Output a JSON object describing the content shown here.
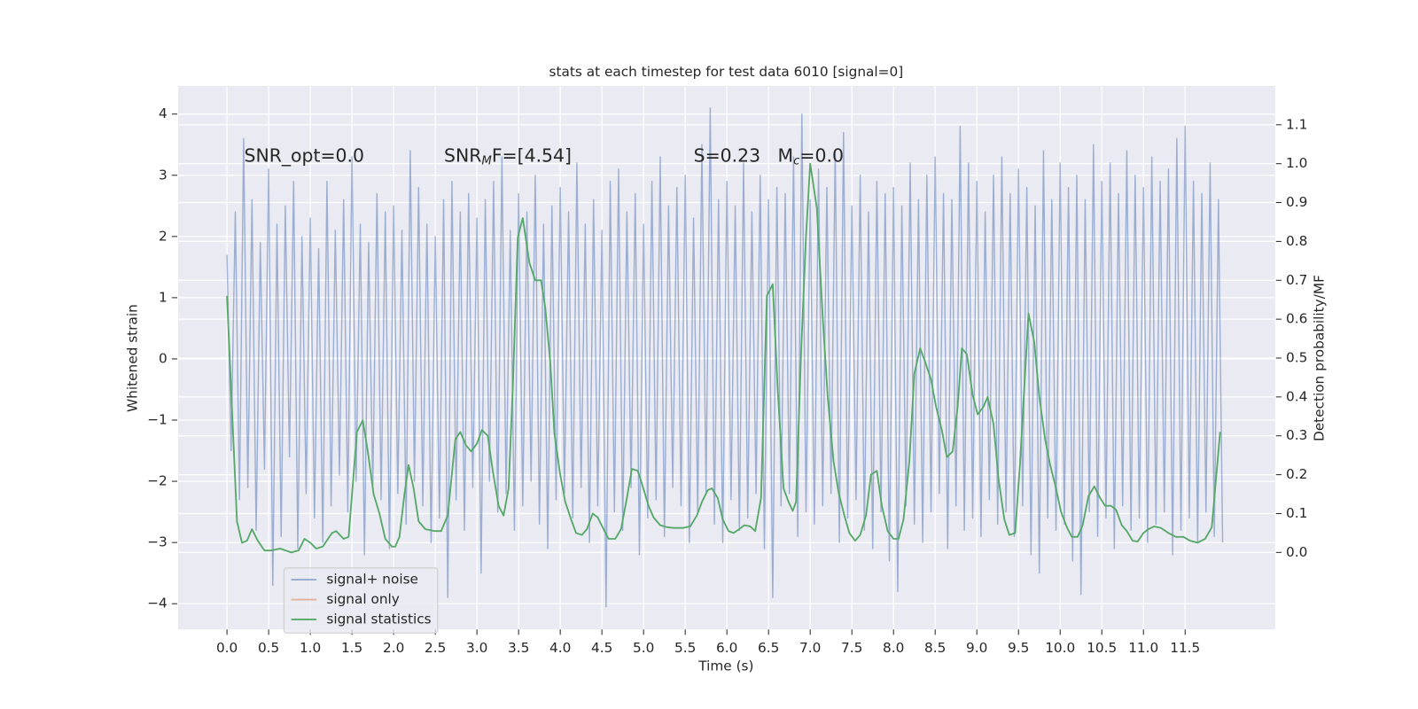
{
  "chart_data": {
    "type": "line",
    "title": "stats at each timestep for test data 6010 [signal=0]",
    "x_label": "Time (s)",
    "y_label": "Whitened strain",
    "y2_label": "Detection probability/MF",
    "annotations": [
      "SNR_opt=0.0",
      "SNR_MF=[4.54]",
      "S=0.23   M_c=0.0"
    ],
    "xlim": [
      -0.586,
      12.58
    ],
    "ylim": [
      -4.42,
      4.46
    ],
    "y2lim": [
      -0.198,
      1.2
    ],
    "xticks": [
      {
        "value": 0,
        "label": "0.0"
      },
      0.5,
      {
        "value": 1,
        "label": "1.0"
      },
      1.5,
      {
        "value": 2,
        "label": "2.0"
      },
      2.5,
      {
        "value": 3,
        "label": "3.0"
      },
      3.5,
      {
        "value": 4,
        "label": "4.0"
      },
      4.5,
      {
        "value": 5,
        "label": "5.0"
      },
      5.5,
      {
        "value": 6,
        "label": "6.0"
      },
      6.5,
      {
        "value": 7,
        "label": "7.0"
      },
      7.5,
      {
        "value": 8,
        "label": "8.0"
      },
      8.5,
      {
        "value": 9,
        "label": "9.0"
      },
      9.5,
      {
        "value": 10,
        "label": "10.0"
      },
      10.5,
      {
        "value": 11,
        "label": "11.0"
      },
      11.5
    ],
    "yticks": [
      {
        "value": -4,
        "label": "−4"
      },
      {
        "value": -3,
        "label": "−3"
      },
      {
        "value": -2,
        "label": "−2"
      },
      {
        "value": -1,
        "label": "−1"
      },
      0,
      1,
      2,
      3,
      4
    ],
    "y2ticks": [
      {
        "value": 0,
        "label": "0.0"
      },
      0.1,
      0.2,
      0.3,
      0.4,
      0.5,
      0.6,
      0.7,
      0.8,
      0.9,
      {
        "value": 1,
        "label": "1.0"
      },
      1.1
    ],
    "grid": true,
    "legend": "lower left",
    "series": [
      {
        "name": "signal+ noise",
        "color": "#4c72b0",
        "x": [
          0,
          0.05,
          0.1,
          0.15,
          0.2,
          0.25,
          0.3,
          0.35,
          0.4,
          0.45,
          0.5,
          0.55,
          0.6,
          0.65,
          0.7,
          0.75,
          0.8,
          0.85,
          0.9,
          0.95,
          1,
          1.05,
          1.1,
          1.15,
          1.2,
          1.25,
          1.3,
          1.35,
          1.4,
          1.45,
          1.5,
          1.55,
          1.6,
          1.65,
          1.7,
          1.75,
          1.8,
          1.85,
          1.9,
          1.95,
          2,
          2.05,
          2.1,
          2.15,
          2.2,
          2.25,
          2.3,
          2.35,
          2.4,
          2.45,
          2.5,
          2.55,
          2.6,
          2.65,
          2.7,
          2.75,
          2.8,
          2.85,
          2.9,
          2.95,
          3,
          3.05,
          3.1,
          3.15,
          3.2,
          3.25,
          3.3,
          3.35,
          3.4,
          3.45,
          3.5,
          3.55,
          3.6,
          3.65,
          3.7,
          3.75,
          3.8,
          3.85,
          3.9,
          3.95,
          4,
          4.05,
          4.1,
          4.15,
          4.2,
          4.25,
          4.3,
          4.35,
          4.4,
          4.45,
          4.5,
          4.55,
          4.6,
          4.65,
          4.7,
          4.75,
          4.8,
          4.85,
          4.9,
          4.95,
          5,
          5.05,
          5.1,
          5.15,
          5.2,
          5.25,
          5.3,
          5.35,
          5.4,
          5.45,
          5.5,
          5.55,
          5.6,
          5.65,
          5.7,
          5.75,
          5.8,
          5.85,
          5.9,
          5.95,
          6,
          6.05,
          6.1,
          6.15,
          6.2,
          6.25,
          6.3,
          6.35,
          6.4,
          6.45,
          6.5,
          6.55,
          6.6,
          6.65,
          6.7,
          6.75,
          6.8,
          6.85,
          6.9,
          6.95,
          7,
          7.05,
          7.1,
          7.15,
          7.2,
          7.25,
          7.3,
          7.35,
          7.4,
          7.45,
          7.5,
          7.55,
          7.6,
          7.65,
          7.7,
          7.75,
          7.8,
          7.85,
          7.9,
          7.95,
          8,
          8.05,
          8.1,
          8.15,
          8.2,
          8.25,
          8.3,
          8.35,
          8.4,
          8.45,
          8.5,
          8.55,
          8.6,
          8.65,
          8.7,
          8.75,
          8.8,
          8.85,
          8.9,
          8.95,
          9,
          9.05,
          9.1,
          9.15,
          9.2,
          9.25,
          9.3,
          9.35,
          9.4,
          9.45,
          9.5,
          9.55,
          9.6,
          9.65,
          9.7,
          9.75,
          9.8,
          9.85,
          9.9,
          9.95,
          10,
          10.05,
          10.1,
          10.15,
          10.2,
          10.25,
          10.3,
          10.35,
          10.4,
          10.45,
          10.5,
          10.55,
          10.6,
          10.65,
          10.7,
          10.75,
          10.8,
          10.85,
          10.9,
          10.95,
          11,
          11.05,
          11.1,
          11.15,
          11.2,
          11.25,
          11.3,
          11.35,
          11.4,
          11.45,
          11.5,
          11.55,
          11.6,
          11.65,
          11.7,
          11.75,
          11.8,
          11.85,
          11.9,
          11.95
        ],
        "values": [
          1.7,
          -1.5,
          2.4,
          -2.3,
          3.6,
          -2.1,
          2.6,
          -2.8,
          1.9,
          -1.8,
          3.1,
          -3.7,
          2.2,
          -2.9,
          2.5,
          -1.6,
          2.9,
          -3.1,
          2.0,
          -2.2,
          2.3,
          -2.6,
          1.8,
          -3.0,
          2.9,
          -2.4,
          2.1,
          -1.9,
          2.6,
          -2.5,
          3.3,
          -2.0,
          2.2,
          -3.2,
          1.9,
          -2.1,
          2.7,
          -2.3,
          2.4,
          -3.1,
          2.5,
          -2.2,
          2.1,
          -2.7,
          3.4,
          -2.0,
          2.8,
          -2.4,
          2.2,
          -3.0,
          2.0,
          -2.6,
          2.6,
          -3.9,
          2.9,
          -2.3,
          2.4,
          -2.8,
          2.7,
          -2.1,
          2.3,
          -3.5,
          2.6,
          -2.0,
          2.9,
          -2.5,
          3.3,
          -2.2,
          2.1,
          -2.8,
          2.7,
          -2.4,
          2.4,
          -2.0,
          3.0,
          -2.7,
          2.2,
          -3.1,
          2.5,
          -2.3,
          2.8,
          -2.2,
          2.4,
          -2.6,
          3.2,
          -2.1,
          2.2,
          -3.0,
          2.6,
          -2.4,
          2.1,
          -4.05,
          2.9,
          -2.5,
          3.1,
          -2.8,
          2.4,
          -2.1,
          2.7,
          -3.2,
          2.2,
          -2.6,
          2.9,
          -2.3,
          3.3,
          -2.9,
          2.5,
          -2.1,
          2.8,
          -2.4,
          3.0,
          -3.0,
          2.3,
          -2.5,
          3.5,
          -2.2,
          4.1,
          -2.7,
          2.6,
          -3.0,
          2.9,
          -2.3,
          2.5,
          -2.8,
          3.2,
          -2.6,
          2.4,
          -2.2,
          3.0,
          -3.1,
          2.6,
          -3.9,
          2.8,
          -2.4,
          2.7,
          -2.2,
          3.3,
          -2.9,
          4.0,
          -2.5,
          2.6,
          -2.7,
          3.1,
          -2.4,
          2.8,
          -2.2,
          3.4,
          -3.0,
          3.7,
          -2.6,
          2.5,
          -2.3,
          3.0,
          -2.8,
          2.4,
          -3.1,
          2.9,
          -2.5,
          2.7,
          -3.3,
          2.8,
          -3.8,
          2.5,
          -2.4,
          3.2,
          -2.7,
          2.6,
          -3.0,
          3.0,
          -2.5,
          3.3,
          -2.2,
          2.7,
          -3.1,
          2.6,
          -2.4,
          3.8,
          -2.8,
          3.2,
          -2.6,
          2.9,
          -2.9,
          2.4,
          -2.3,
          3.0,
          -2.7,
          3.3,
          -2.5,
          2.7,
          -2.9,
          3.1,
          -2.4,
          2.8,
          -3.2,
          2.5,
          -3.5,
          3.4,
          -2.6,
          2.6,
          -2.8,
          3.2,
          -2.7,
          2.8,
          -3.3,
          3.0,
          -3.85,
          2.6,
          -2.5,
          3.5,
          -2.9,
          2.9,
          -2.6,
          3.2,
          -3.1,
          2.7,
          -2.4,
          3.4,
          -2.8,
          3.0,
          -2.6,
          2.8,
          -3.0,
          3.3,
          -2.7,
          2.9,
          -2.5,
          3.1,
          -3.2,
          3.6,
          -2.8,
          3.8,
          -2.6,
          2.9,
          -3.0,
          2.7,
          -2.5,
          3.2,
          -2.9,
          2.6,
          -3.0
        ]
      },
      {
        "name": "signal only",
        "color": "#dd8452",
        "x": [],
        "values": []
      },
      {
        "name": "signal statistics",
        "color": "#55a868",
        "axis": "y2",
        "x": [
          0.0,
          0.12,
          0.18,
          0.24,
          0.3,
          0.37,
          0.45,
          0.53,
          0.64,
          0.77,
          0.86,
          0.93,
          1.0,
          1.07,
          1.15,
          1.26,
          1.31,
          1.4,
          1.46,
          1.56,
          1.63,
          1.69,
          1.76,
          1.83,
          1.9,
          1.98,
          2.02,
          2.07,
          2.13,
          2.18,
          2.24,
          2.3,
          2.38,
          2.49,
          2.57,
          2.65,
          2.74,
          2.8,
          2.87,
          2.93,
          3.0,
          3.06,
          3.13,
          3.19,
          3.26,
          3.32,
          3.38,
          3.43,
          3.49,
          3.55,
          3.63,
          3.7,
          3.77,
          3.82,
          3.88,
          3.93,
          4.0,
          4.06,
          4.13,
          4.19,
          4.26,
          4.32,
          4.39,
          4.45,
          4.52,
          4.58,
          4.66,
          4.73,
          4.8,
          4.86,
          4.93,
          4.99,
          5.06,
          5.12,
          5.2,
          5.28,
          5.36,
          5.47,
          5.56,
          5.64,
          5.7,
          5.77,
          5.82,
          5.89,
          5.95,
          6.02,
          6.08,
          6.15,
          6.21,
          6.28,
          6.34,
          6.41,
          6.48,
          6.55,
          6.61,
          6.68,
          6.74,
          6.79,
          6.83,
          6.89,
          6.95,
          7.0,
          7.08,
          7.15,
          7.21,
          7.28,
          7.34,
          7.41,
          7.47,
          7.54,
          7.6,
          7.67,
          7.73,
          7.8,
          7.86,
          7.93,
          8.0,
          8.06,
          8.12,
          8.19,
          8.25,
          8.32,
          8.38,
          8.45,
          8.51,
          8.58,
          8.64,
          8.71,
          8.77,
          8.82,
          8.88,
          8.95,
          9.01,
          9.08,
          9.13,
          9.2,
          9.26,
          9.33,
          9.39,
          9.46,
          9.52,
          9.62,
          9.69,
          9.75,
          9.82,
          9.88,
          9.95,
          10.01,
          10.08,
          10.14,
          10.21,
          10.27,
          10.34,
          10.41,
          10.48,
          10.54,
          10.61,
          10.67,
          10.74,
          10.8,
          10.87,
          10.93,
          11.0,
          11.06,
          11.13,
          11.21,
          11.3,
          11.39,
          11.48,
          11.56,
          11.65,
          11.74,
          11.82,
          11.92
        ],
        "values": [
          0.66,
          0.08,
          0.025,
          0.03,
          0.06,
          0.03,
          0.005,
          0.005,
          0.01,
          0.0,
          0.005,
          0.035,
          0.025,
          0.01,
          0.015,
          0.05,
          0.055,
          0.035,
          0.04,
          0.31,
          0.34,
          0.26,
          0.15,
          0.1,
          0.035,
          0.015,
          0.015,
          0.04,
          0.15,
          0.225,
          0.165,
          0.08,
          0.06,
          0.055,
          0.055,
          0.095,
          0.29,
          0.31,
          0.275,
          0.26,
          0.28,
          0.315,
          0.3,
          0.21,
          0.12,
          0.095,
          0.165,
          0.42,
          0.81,
          0.86,
          0.745,
          0.7,
          0.7,
          0.63,
          0.49,
          0.305,
          0.2,
          0.13,
          0.085,
          0.05,
          0.045,
          0.06,
          0.1,
          0.09,
          0.06,
          0.035,
          0.035,
          0.06,
          0.14,
          0.215,
          0.21,
          0.17,
          0.12,
          0.09,
          0.07,
          0.065,
          0.063,
          0.063,
          0.067,
          0.095,
          0.13,
          0.16,
          0.165,
          0.14,
          0.085,
          0.055,
          0.05,
          0.06,
          0.07,
          0.067,
          0.055,
          0.14,
          0.66,
          0.69,
          0.42,
          0.165,
          0.13,
          0.107,
          0.13,
          0.51,
          0.815,
          1.0,
          0.885,
          0.605,
          0.4,
          0.235,
          0.155,
          0.095,
          0.05,
          0.03,
          0.045,
          0.095,
          0.2,
          0.21,
          0.12,
          0.055,
          0.035,
          0.035,
          0.085,
          0.235,
          0.46,
          0.525,
          0.49,
          0.445,
          0.375,
          0.315,
          0.245,
          0.26,
          0.375,
          0.525,
          0.51,
          0.405,
          0.355,
          0.375,
          0.4,
          0.33,
          0.19,
          0.085,
          0.045,
          0.05,
          0.235,
          0.615,
          0.54,
          0.4,
          0.29,
          0.225,
          0.165,
          0.105,
          0.065,
          0.04,
          0.04,
          0.07,
          0.145,
          0.17,
          0.14,
          0.12,
          0.12,
          0.11,
          0.07,
          0.055,
          0.03,
          0.028,
          0.05,
          0.06,
          0.067,
          0.063,
          0.05,
          0.04,
          0.04,
          0.03,
          0.025,
          0.035,
          0.065,
          0.31
        ]
      }
    ]
  }
}
